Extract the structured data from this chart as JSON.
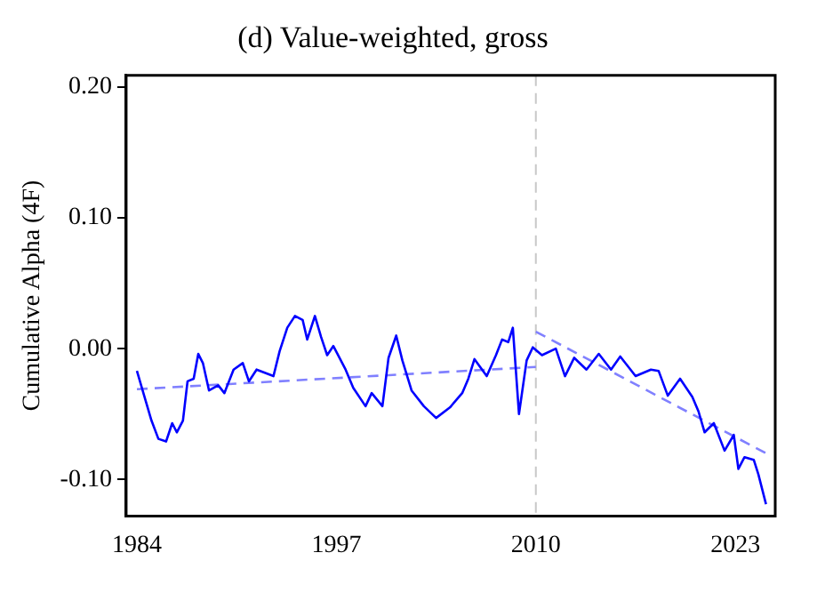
{
  "chart_data": {
    "type": "line",
    "title": "(d) Value-weighted, gross",
    "ylabel": "Cumulative Alpha (4F)",
    "xlim": [
      1983.3,
      2025.6
    ],
    "xticks": [
      1984,
      1997,
      2010,
      2023
    ],
    "ylim": [
      -0.128,
      0.209
    ],
    "yticks": [
      {
        "value": 0.2,
        "label": "0.20"
      },
      {
        "value": 0.1,
        "label": "0.10"
      },
      {
        "value": 0,
        "label": "0.00"
      },
      {
        "value": -0.1,
        "label": "-0.10"
      }
    ],
    "grid": false,
    "legend": false,
    "ref_lines": [
      {
        "axis": "x",
        "value": 2010,
        "color": "#c8c8c8",
        "line_style": "dashed"
      }
    ],
    "series": [
      {
        "color": "#0000ff",
        "line_style": "solid",
        "x": [
          1984.0,
          1984.55,
          1984.95,
          1985.4,
          1985.9,
          1986.3,
          1986.6,
          1987.0,
          1987.3,
          1987.7,
          1988.0,
          1988.3,
          1988.7,
          1989.3,
          1989.7,
          1990.3,
          1990.9,
          1991.3,
          1991.8,
          1992.9,
          1993.3,
          1993.8,
          1994.3,
          1994.8,
          1995.1,
          1995.6,
          1996.0,
          1996.4,
          1996.8,
          1997.6,
          1998.1,
          1998.9,
          1999.3,
          2000.0,
          2000.4,
          2000.9,
          2001.3,
          2001.9,
          2002.7,
          2003.5,
          2004.4,
          2005.2,
          2005.6,
          2006.0,
          2006.8,
          2007.4,
          2007.8,
          2008.2,
          2008.5,
          2008.9,
          2009.4,
          2009.8,
          2010.4,
          2011.3,
          2011.9,
          2012.5,
          2013.3,
          2014.1,
          2014.9,
          2015.5,
          2016.5,
          2017.5,
          2018.0,
          2018.6,
          2019.4,
          2020.2,
          2020.6,
          2021.0,
          2021.6,
          2022.3,
          2022.9,
          2023.2,
          2023.6,
          2024.2,
          2024.5,
          2025.0
        ],
        "values": [
          -0.017,
          -0.039,
          -0.055,
          -0.069,
          -0.071,
          -0.057,
          -0.064,
          -0.055,
          -0.025,
          -0.023,
          -0.004,
          -0.011,
          -0.032,
          -0.028,
          -0.034,
          -0.016,
          -0.011,
          -0.025,
          -0.016,
          -0.021,
          -0.002,
          0.016,
          0.025,
          0.022,
          0.007,
          0.025,
          0.009,
          -0.005,
          0.002,
          -0.016,
          -0.03,
          -0.044,
          -0.034,
          -0.044,
          -0.007,
          0.01,
          -0.009,
          -0.032,
          -0.044,
          -0.053,
          -0.045,
          -0.034,
          -0.023,
          -0.008,
          -0.021,
          -0.005,
          0.007,
          0.005,
          0.016,
          -0.05,
          -0.009,
          0.001,
          -0.005,
          0.0,
          -0.021,
          -0.007,
          -0.016,
          -0.004,
          -0.016,
          -0.006,
          -0.021,
          -0.016,
          -0.017,
          -0.036,
          -0.023,
          -0.037,
          -0.048,
          -0.064,
          -0.057,
          -0.078,
          -0.066,
          -0.092,
          -0.083,
          -0.085,
          -0.096,
          -0.119
        ]
      },
      {
        "color": "#8080ff",
        "line_style": "dashed",
        "x": [
          1984.0,
          2010.0
        ],
        "values": [
          -0.031,
          -0.014
        ]
      },
      {
        "color": "#8080ff",
        "line_style": "dashed",
        "x": [
          2010.0,
          2025.0
        ],
        "values": [
          0.013,
          -0.08
        ]
      }
    ]
  }
}
